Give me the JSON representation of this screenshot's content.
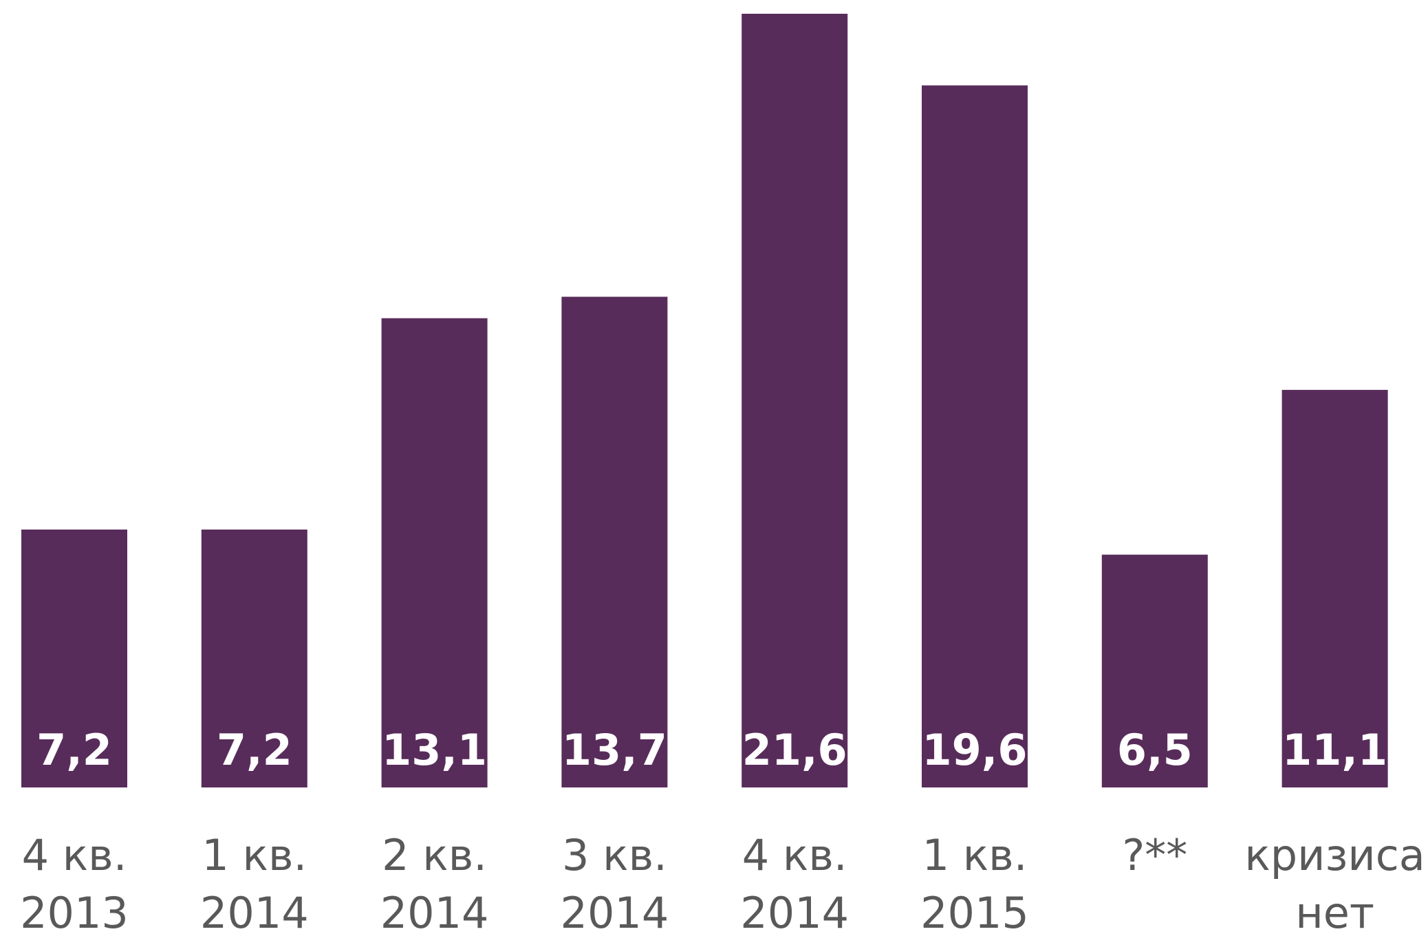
{
  "chart_data": {
    "type": "bar",
    "categories": [
      [
        "4 кв.",
        "2013"
      ],
      [
        "1 кв.",
        "2014"
      ],
      [
        "2 кв.",
        "2014"
      ],
      [
        "3 кв.",
        "2014"
      ],
      [
        "4 кв.",
        "2014"
      ],
      [
        "1 кв.",
        "2015"
      ],
      [
        "?**"
      ],
      [
        "кризиса",
        "нет"
      ]
    ],
    "values": [
      7.2,
      7.2,
      13.1,
      13.7,
      21.6,
      19.6,
      6.5,
      11.1
    ],
    "value_labels": [
      "7,2",
      "7,2",
      "13,1",
      "13,7",
      "21,6",
      "19,6",
      "6,5",
      "11,1"
    ],
    "title": "",
    "xlabel": "",
    "ylabel": "",
    "ylim": [
      0,
      21.6
    ],
    "grid": false,
    "legend": "none",
    "colors": {
      "bar": "#582c5a",
      "value_label": "#ffffff",
      "category_label": "#595959"
    }
  }
}
